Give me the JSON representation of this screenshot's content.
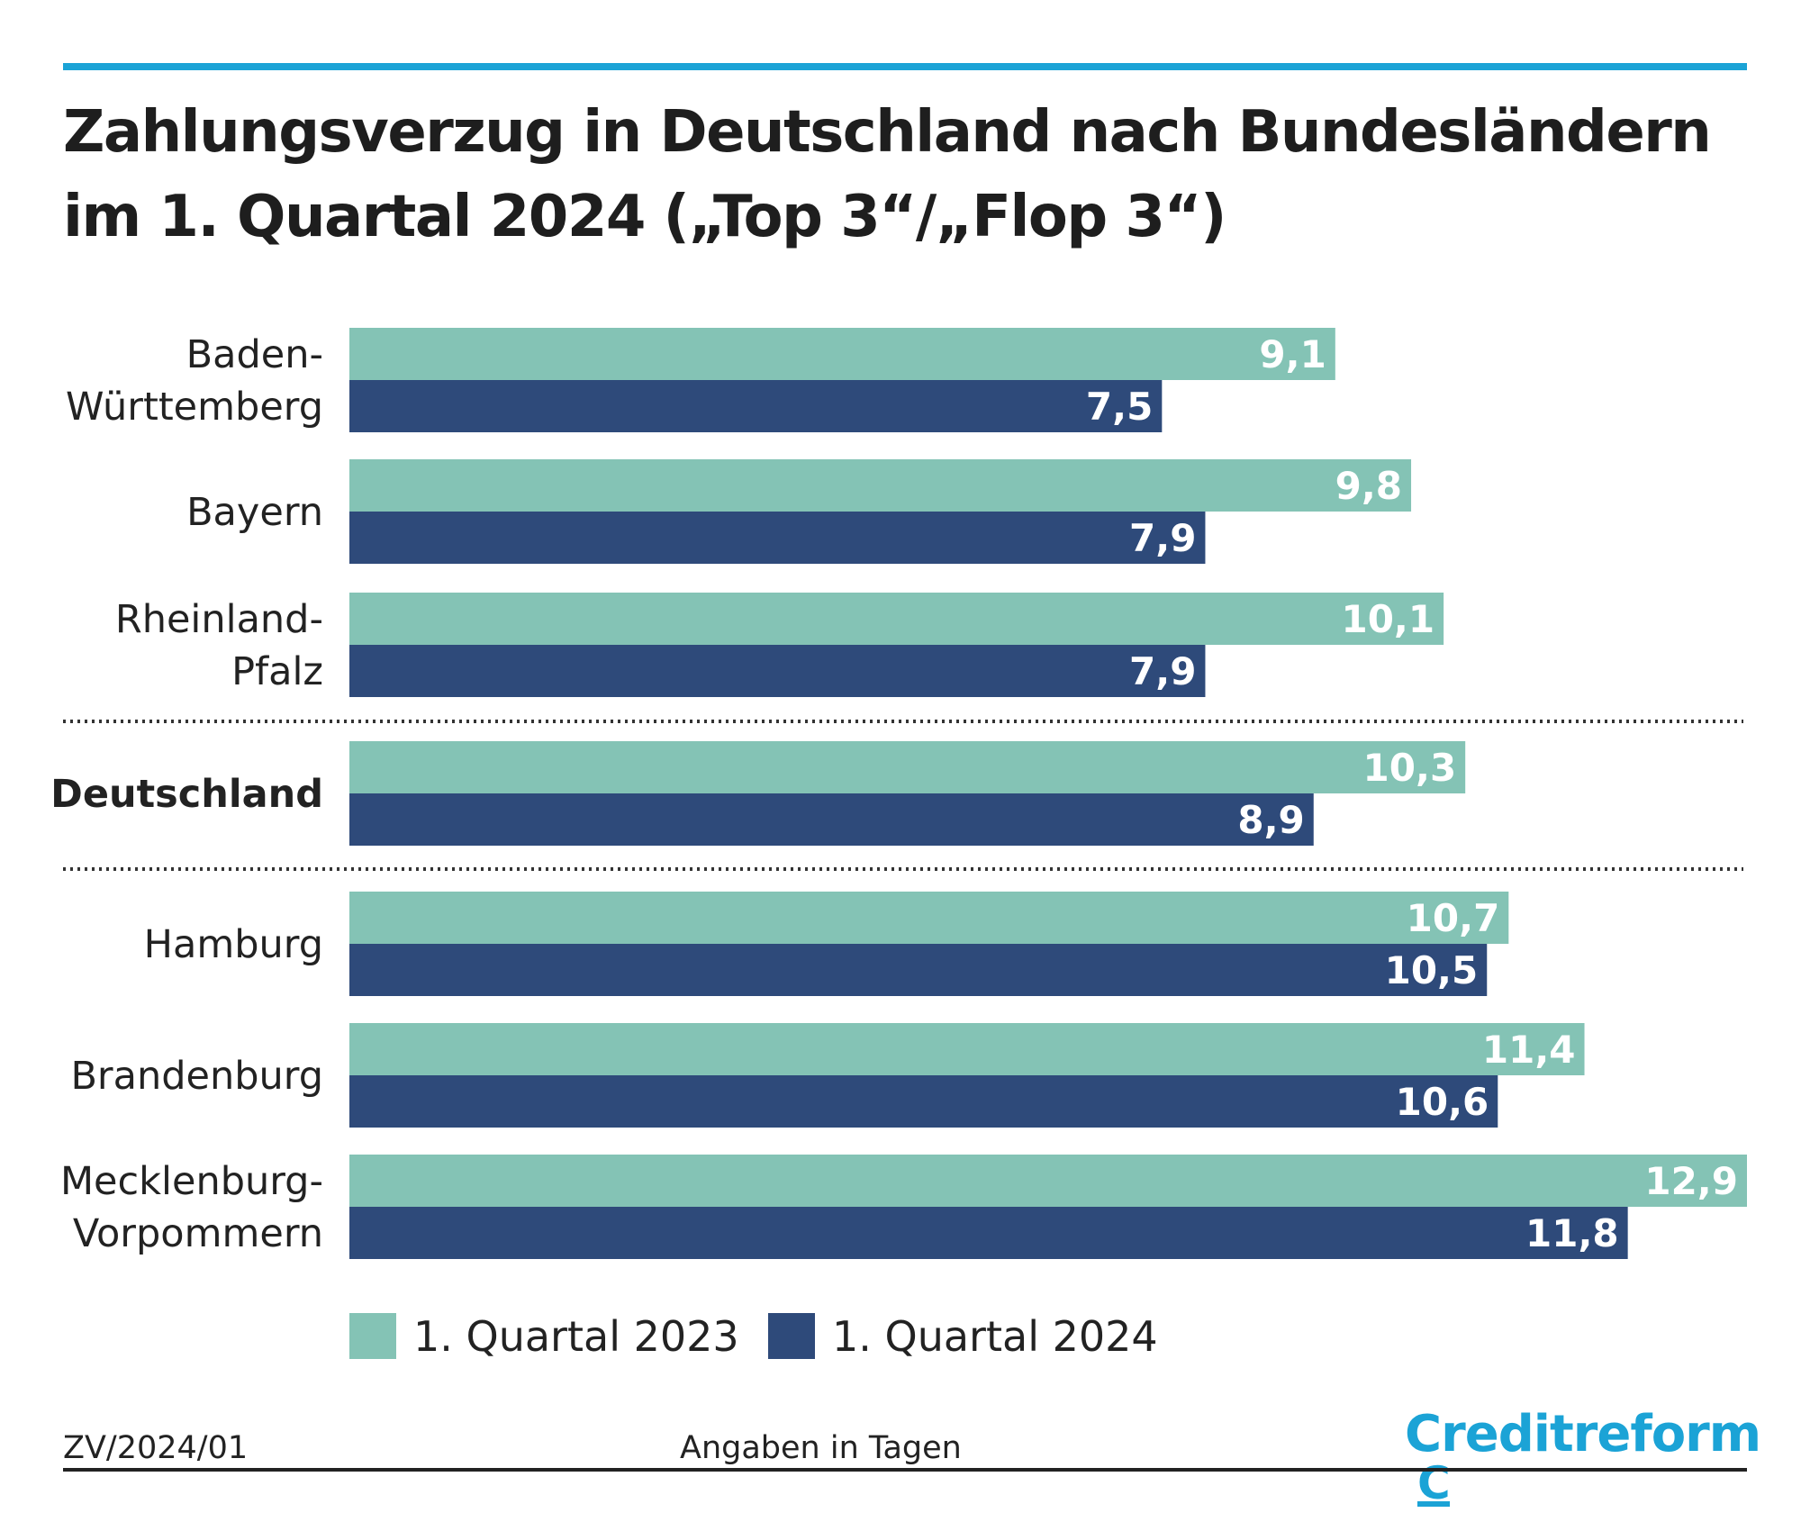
{
  "title": {
    "line1": "Zahlungsverzug in Deutschland nach Bundesländern",
    "line2": "im 1. Quartal 2024 („Top 3“/„Flop 3“)"
  },
  "chart_data": {
    "type": "bar",
    "orientation": "horizontal",
    "categories": [
      [
        "Baden-",
        "Württemberg"
      ],
      [
        "Bayern"
      ],
      [
        "Rheinland-",
        "Pfalz"
      ],
      [
        "Deutschland"
      ],
      [
        "Hamburg"
      ],
      [
        "Brandenburg"
      ],
      [
        "Mecklenburg-",
        "Vorpommern"
      ]
    ],
    "highlight_category": "Deutschland",
    "series": [
      {
        "name": "1. Quartal 2023",
        "color": "#84c3b5",
        "values": [
          9.1,
          9.8,
          10.1,
          10.3,
          10.7,
          11.4,
          12.9
        ],
        "labels": [
          "9,1",
          "9,8",
          "10,1",
          "10,3",
          "10,7",
          "11,4",
          "12,9"
        ]
      },
      {
        "name": "1. Quartal 2024",
        "color": "#2e4a7a",
        "values": [
          7.5,
          7.9,
          7.9,
          8.9,
          10.5,
          10.6,
          11.8
        ],
        "labels": [
          "7,5",
          "7,9",
          "7,9",
          "8,9",
          "10,5",
          "10,6",
          "11,8"
        ]
      }
    ],
    "xlim": [
      0,
      12.9
    ],
    "grid": false,
    "separators_after": [
      "Rheinland-Pfalz",
      "Deutschland"
    ],
    "legend": "bottom"
  },
  "footer": {
    "code": "ZV/2024/01",
    "unit_note": "Angaben in Tagen"
  },
  "logo": {
    "text": "Creditreform",
    "color": "#1ba3d6"
  }
}
